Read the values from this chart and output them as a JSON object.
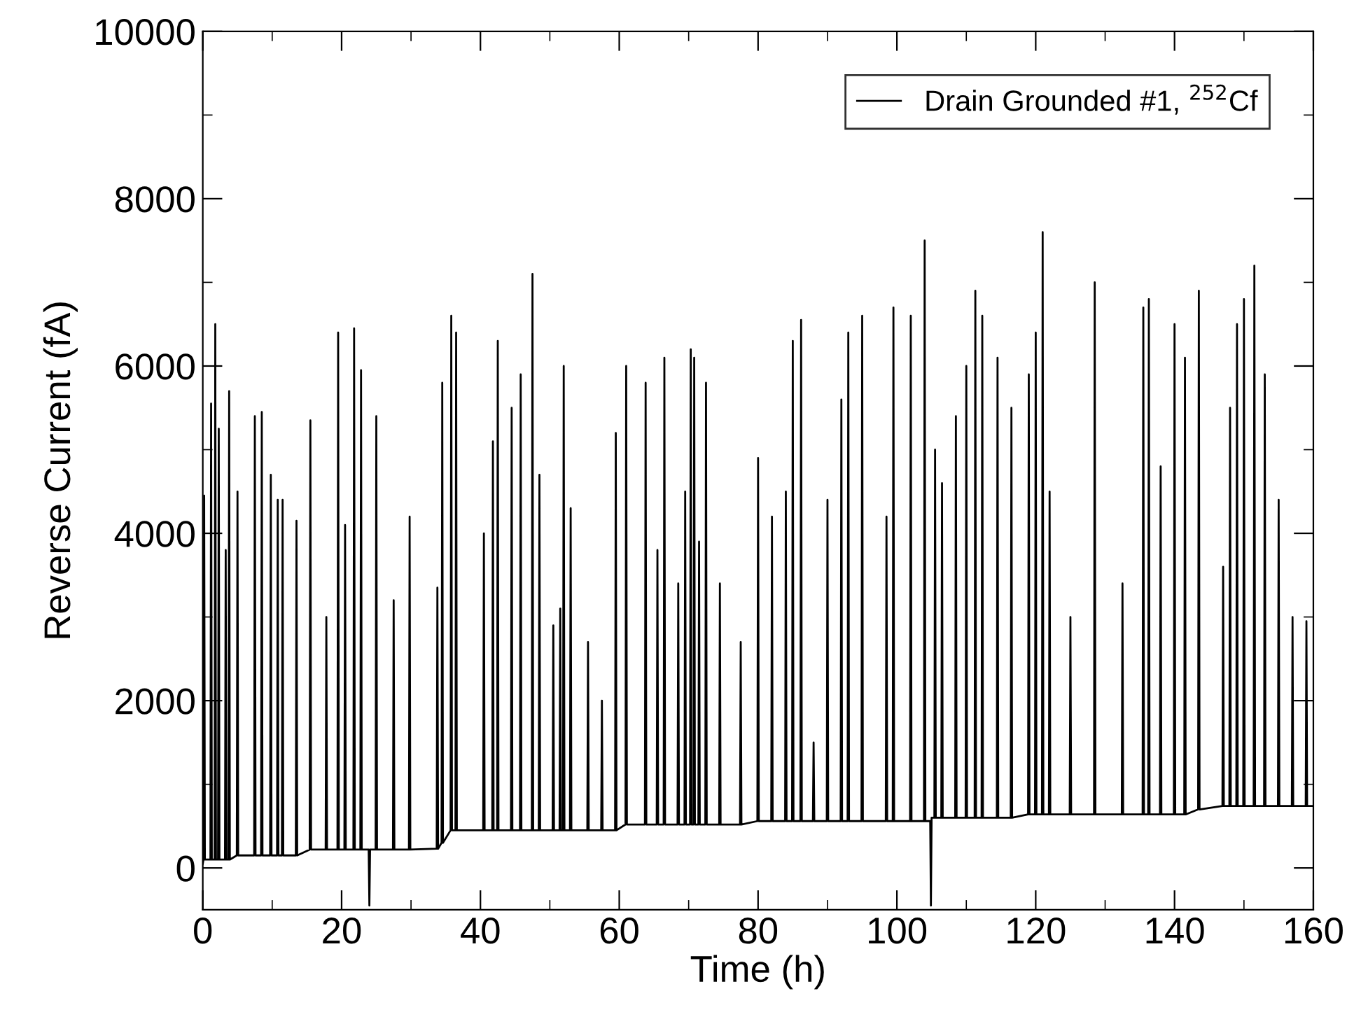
{
  "chart_data": {
    "type": "line",
    "xlabel": "Time (h)",
    "ylabel": "Reverse Current (fA)",
    "xlim": [
      0,
      160
    ],
    "xticks": [
      0,
      20,
      40,
      60,
      80,
      100,
      120,
      140,
      160
    ],
    "ylim": [
      -500,
      10000
    ],
    "yticks": [
      0,
      2000,
      4000,
      6000,
      8000,
      10000
    ],
    "grid": false,
    "legend": "top right",
    "marker": "none",
    "line_style": "solid",
    "series": [
      {
        "name": "Drain Grounded #1, $^{252}$Cf",
        "color": "#000000",
        "x": [
          0,
          0.1,
          0.2,
          0.3,
          1.1,
          1.2,
          1.3,
          1.7,
          1.8,
          1.9,
          2.2,
          2.3,
          2.4,
          3.2,
          3.3,
          3.4,
          3.7,
          3.8,
          3.9,
          4.9,
          5.0,
          5.1,
          7.4,
          7.5,
          7.6,
          8.4,
          8.5,
          8.6,
          9.7,
          9.8,
          9.9,
          10.7,
          10.8,
          10.9,
          11.4,
          11.5,
          11.6,
          13.4,
          13.5,
          13.6,
          15.4,
          15.5,
          15.6,
          17.7,
          17.8,
          17.9,
          19.4,
          19.5,
          19.6,
          20.4,
          20.5,
          20.6,
          21.7,
          21.8,
          21.9,
          22.7,
          22.8,
          22.9,
          23.9,
          24,
          24.1,
          24.9,
          25,
          25.1,
          27.4,
          27.5,
          27.6,
          29.7,
          29.8,
          29.9,
          33.7,
          33.8,
          33.9,
          34.4,
          34.5,
          34.6,
          35.7,
          35.8,
          35.9,
          36.4,
          36.5,
          36.6,
          40.4,
          40.5,
          40.6,
          41.7,
          41.8,
          41.9,
          42.4,
          42.5,
          42.6,
          44.4,
          44.5,
          44.6,
          45.7,
          45.8,
          45.9,
          47.4,
          47.5,
          47.6,
          48.4,
          48.5,
          48.6,
          50.4,
          50.5,
          50.6,
          51.4,
          51.5,
          51.6,
          51.9,
          52,
          52.1,
          52.9,
          53,
          53.1,
          55.4,
          55.5,
          55.6,
          57.4,
          57.5,
          57.6,
          59.4,
          59.5,
          59.6,
          60.9,
          61,
          61.1,
          63.7,
          63.8,
          63.9,
          65.4,
          65.5,
          65.6,
          66.4,
          66.5,
          66.6,
          68.4,
          68.5,
          68.6,
          69.4,
          69.5,
          69.6,
          70.2,
          70.3,
          70.4,
          70.7,
          70.8,
          70.9,
          71.4,
          71.5,
          71.6,
          72.4,
          72.5,
          72.6,
          74.4,
          74.5,
          74.6,
          77.4,
          77.5,
          77.6,
          79.9,
          80,
          80.1,
          81.9,
          82,
          82.1,
          83.9,
          84,
          84.1,
          84.9,
          85,
          85.1,
          86.1,
          86.2,
          86.3,
          87.9,
          88,
          88.1,
          89.9,
          90,
          90.1,
          91.9,
          92,
          92.1,
          92.9,
          93,
          93.1,
          94.9,
          95,
          95.1,
          98.4,
          98.5,
          98.6,
          99.4,
          99.5,
          99.6,
          101.9,
          102,
          102.1,
          103.9,
          104,
          104.1,
          104.8,
          104.9,
          105.0,
          105.4,
          105.5,
          105.6,
          106.4,
          106.5,
          106.6,
          108.4,
          108.5,
          108.6,
          109.9,
          110,
          110.1,
          111.2,
          111.3,
          111.4,
          112.2,
          112.3,
          112.4,
          114.4,
          114.5,
          114.6,
          116.4,
          116.5,
          116.6,
          118.9,
          119,
          119.1,
          119.9,
          120,
          120.1,
          120.9,
          121,
          121.1,
          121.9,
          122,
          122.1,
          124.9,
          125,
          125.1,
          128.4,
          128.5,
          128.6,
          132.4,
          132.5,
          132.6,
          135.4,
          135.5,
          135.6,
          136.2,
          136.3,
          136.4,
          137.9,
          138,
          138.1,
          139.9,
          140,
          140.1,
          141.4,
          141.5,
          141.6,
          143.4,
          143.5,
          143.6,
          146.9,
          147,
          147.1,
          147.9,
          148,
          148.1,
          148.9,
          149,
          149.1,
          149.9,
          150,
          150.1,
          151.4,
          151.5,
          151.6,
          152.9,
          153,
          153.1,
          154.9,
          155,
          155.1,
          156.9,
          157,
          157.1,
          158.9,
          159,
          159.1,
          160
        ],
        "values": [
          50,
          100,
          4450,
          100,
          100,
          5550,
          100,
          100,
          6500,
          100,
          100,
          5250,
          100,
          100,
          3800,
          100,
          100,
          5700,
          100,
          150,
          4500,
          150,
          150,
          5400,
          150,
          150,
          5450,
          150,
          150,
          4700,
          150,
          150,
          4400,
          150,
          150,
          4400,
          150,
          150,
          4150,
          150,
          220,
          5350,
          220,
          220,
          3000,
          220,
          220,
          6400,
          220,
          220,
          4100,
          220,
          220,
          6450,
          220,
          220,
          5950,
          220,
          220,
          -450,
          220,
          220,
          5400,
          220,
          220,
          3200,
          220,
          220,
          4200,
          220,
          230,
          3350,
          230,
          300,
          5800,
          300,
          450,
          6600,
          450,
          450,
          6400,
          450,
          450,
          4000,
          450,
          450,
          5100,
          450,
          450,
          6300,
          450,
          450,
          5500,
          450,
          450,
          5900,
          450,
          450,
          7100,
          450,
          450,
          4700,
          450,
          450,
          2900,
          450,
          450,
          3100,
          450,
          450,
          6000,
          450,
          450,
          4300,
          450,
          450,
          2700,
          450,
          450,
          2000,
          450,
          450,
          5200,
          450,
          520,
          6000,
          520,
          520,
          5800,
          520,
          520,
          3800,
          520,
          520,
          6100,
          520,
          520,
          3400,
          520,
          520,
          4500,
          520,
          520,
          6200,
          520,
          520,
          6100,
          520,
          520,
          3900,
          520,
          520,
          5800,
          520,
          520,
          3400,
          520,
          520,
          2700,
          520,
          560,
          4900,
          560,
          560,
          4200,
          560,
          560,
          4500,
          560,
          560,
          6300,
          560,
          560,
          6550,
          560,
          560,
          1500,
          560,
          560,
          4400,
          560,
          560,
          5600,
          560,
          560,
          6400,
          560,
          560,
          6600,
          560,
          560,
          4200,
          560,
          560,
          6700,
          560,
          560,
          6600,
          560,
          560,
          7500,
          560,
          560,
          -450,
          600,
          600,
          5000,
          600,
          600,
          4600,
          600,
          600,
          5400,
          600,
          600,
          6000,
          600,
          600,
          6900,
          600,
          600,
          6600,
          600,
          600,
          6100,
          600,
          600,
          5500,
          600,
          640,
          5900,
          640,
          640,
          6400,
          640,
          640,
          7600,
          640,
          640,
          4500,
          640,
          640,
          3000,
          640,
          640,
          7000,
          640,
          640,
          3400,
          640,
          640,
          6700,
          640,
          640,
          6800,
          640,
          640,
          4800,
          640,
          640,
          6500,
          640,
          640,
          6100,
          640,
          700,
          6900,
          700,
          740,
          3600,
          740,
          740,
          5500,
          740,
          740,
          6500,
          740,
          740,
          6800,
          740,
          740,
          7200,
          740,
          740,
          5900,
          740,
          740,
          4400,
          740,
          740,
          3000,
          740,
          740,
          2950,
          740,
          740
        ]
      }
    ]
  }
}
